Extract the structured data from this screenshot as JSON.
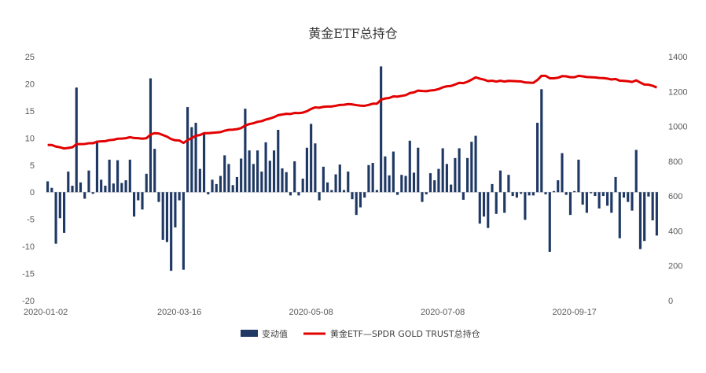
{
  "chart_data": {
    "type": "bar",
    "title": "黄金ETF总持仓",
    "x_tick_labels": [
      "2020-01-02",
      "2020-03-16",
      "2020-05-08",
      "2020-07-08",
      "2020-09-17"
    ],
    "y_left": {
      "ylim": [
        -20,
        25
      ],
      "ticks": [
        25,
        20,
        15,
        10,
        5,
        0,
        -5,
        -10,
        -15,
        -20
      ]
    },
    "y_right": {
      "ylim": [
        0,
        1400
      ],
      "ticks": [
        1400,
        1200,
        1000,
        800,
        600,
        400,
        200,
        0
      ]
    },
    "legend_position": "bottom",
    "colors": {
      "bars": "#1f3864",
      "line": "#e30000"
    },
    "series": [
      {
        "name": "变动值",
        "kind": "bar",
        "axis": "left",
        "values": [
          2.0,
          0.8,
          -9.5,
          -4.8,
          -7.5,
          3.8,
          1.2,
          19.3,
          1.8,
          -1.2,
          4.0,
          -0.3,
          9.5,
          2.3,
          1.2,
          6.0,
          1.6,
          5.9,
          1.7,
          2.2,
          6.0,
          -4.5,
          -1.5,
          -3.2,
          3.4,
          21.0,
          8.0,
          -1.8,
          -8.8,
          -9.2,
          -14.5,
          -6.5,
          -1.5,
          -14.3,
          15.7,
          12.0,
          12.8,
          4.3,
          11.0,
          -0.4,
          2.3,
          1.5,
          3.0,
          6.8,
          5.2,
          1.3,
          2.8,
          6.2,
          15.4,
          7.7,
          5.2,
          7.7,
          3.8,
          9.2,
          5.8,
          7.7,
          11.5,
          4.4,
          3.7,
          -0.6,
          5.7,
          -0.6,
          2.5,
          8.2,
          12.6,
          9.0,
          -1.5,
          4.7,
          1.8,
          0.4,
          3.3,
          5.1,
          0.4,
          3.8,
          -1.3,
          -4.2,
          -2.8,
          -1.0,
          5.0,
          5.4,
          0.4,
          23.2,
          6.6,
          3.1,
          7.5,
          -0.5,
          3.2,
          3.0,
          9.5,
          3.6,
          8.2,
          -1.8,
          -0.4,
          3.5,
          2.2,
          4.3,
          8.1,
          5.2,
          1.4,
          6.3,
          8.1,
          -1.4,
          6.3,
          9.3,
          10.4,
          -5.8,
          -4.5,
          -6.6,
          1.5,
          -4.0,
          4.0,
          -3.8,
          3.2,
          -0.7,
          -1.0,
          -0.3,
          -5.1,
          -0.6,
          -0.6,
          12.8,
          19.0,
          -0.4,
          -11.0,
          0.2,
          2.2,
          7.2,
          -0.5,
          -4.2,
          0.2,
          6.0,
          -2.3,
          -3.8,
          -0.2,
          -0.7,
          -3.0,
          -0.7,
          -2.5,
          -3.8,
          2.8,
          -8.5,
          -1.0,
          -1.8,
          -3.4,
          7.8,
          -10.5,
          -9.0,
          -0.8,
          -5.2,
          -8.0
        ]
      },
      {
        "name": "黄金ETF—SPDR GOLD TRUST总持仓",
        "kind": "line",
        "axis": "right",
        "values": [
          893,
          893,
          884,
          880,
          873,
          876,
          880,
          898,
          898,
          899,
          903,
          903,
          912,
          914,
          915,
          921,
          923,
          929,
          930,
          932,
          938,
          933,
          932,
          929,
          932,
          953,
          961,
          959,
          950,
          941,
          927,
          920,
          919,
          905,
          921,
          933,
          946,
          950,
          961,
          961,
          963,
          965,
          967,
          975,
          980,
          981,
          984,
          990,
          1005,
          1013,
          1018,
          1026,
          1030,
          1039,
          1045,
          1053,
          1064,
          1068,
          1072,
          1071,
          1077,
          1076,
          1079,
          1087,
          1100,
          1109,
          1107,
          1112,
          1114,
          1114,
          1118,
          1123,
          1124,
          1128,
          1126,
          1122,
          1119,
          1118,
          1123,
          1130,
          1130,
          1153,
          1160,
          1163,
          1172,
          1171,
          1175,
          1179,
          1191,
          1195,
          1205,
          1203,
          1202,
          1206,
          1208,
          1214,
          1224,
          1230,
          1232,
          1240,
          1250,
          1248,
          1256,
          1268,
          1281,
          1274,
          1268,
          1260,
          1262,
          1257,
          1262,
          1257,
          1261,
          1260,
          1259,
          1258,
          1252,
          1251,
          1250,
          1266,
          1290,
          1290,
          1276,
          1276,
          1279,
          1288,
          1287,
          1282,
          1282,
          1290,
          1287,
          1283,
          1282,
          1281,
          1278,
          1277,
          1274,
          1269,
          1272,
          1262,
          1261,
          1259,
          1255,
          1264,
          1251,
          1240,
          1239,
          1233,
          1223
        ]
      }
    ]
  }
}
